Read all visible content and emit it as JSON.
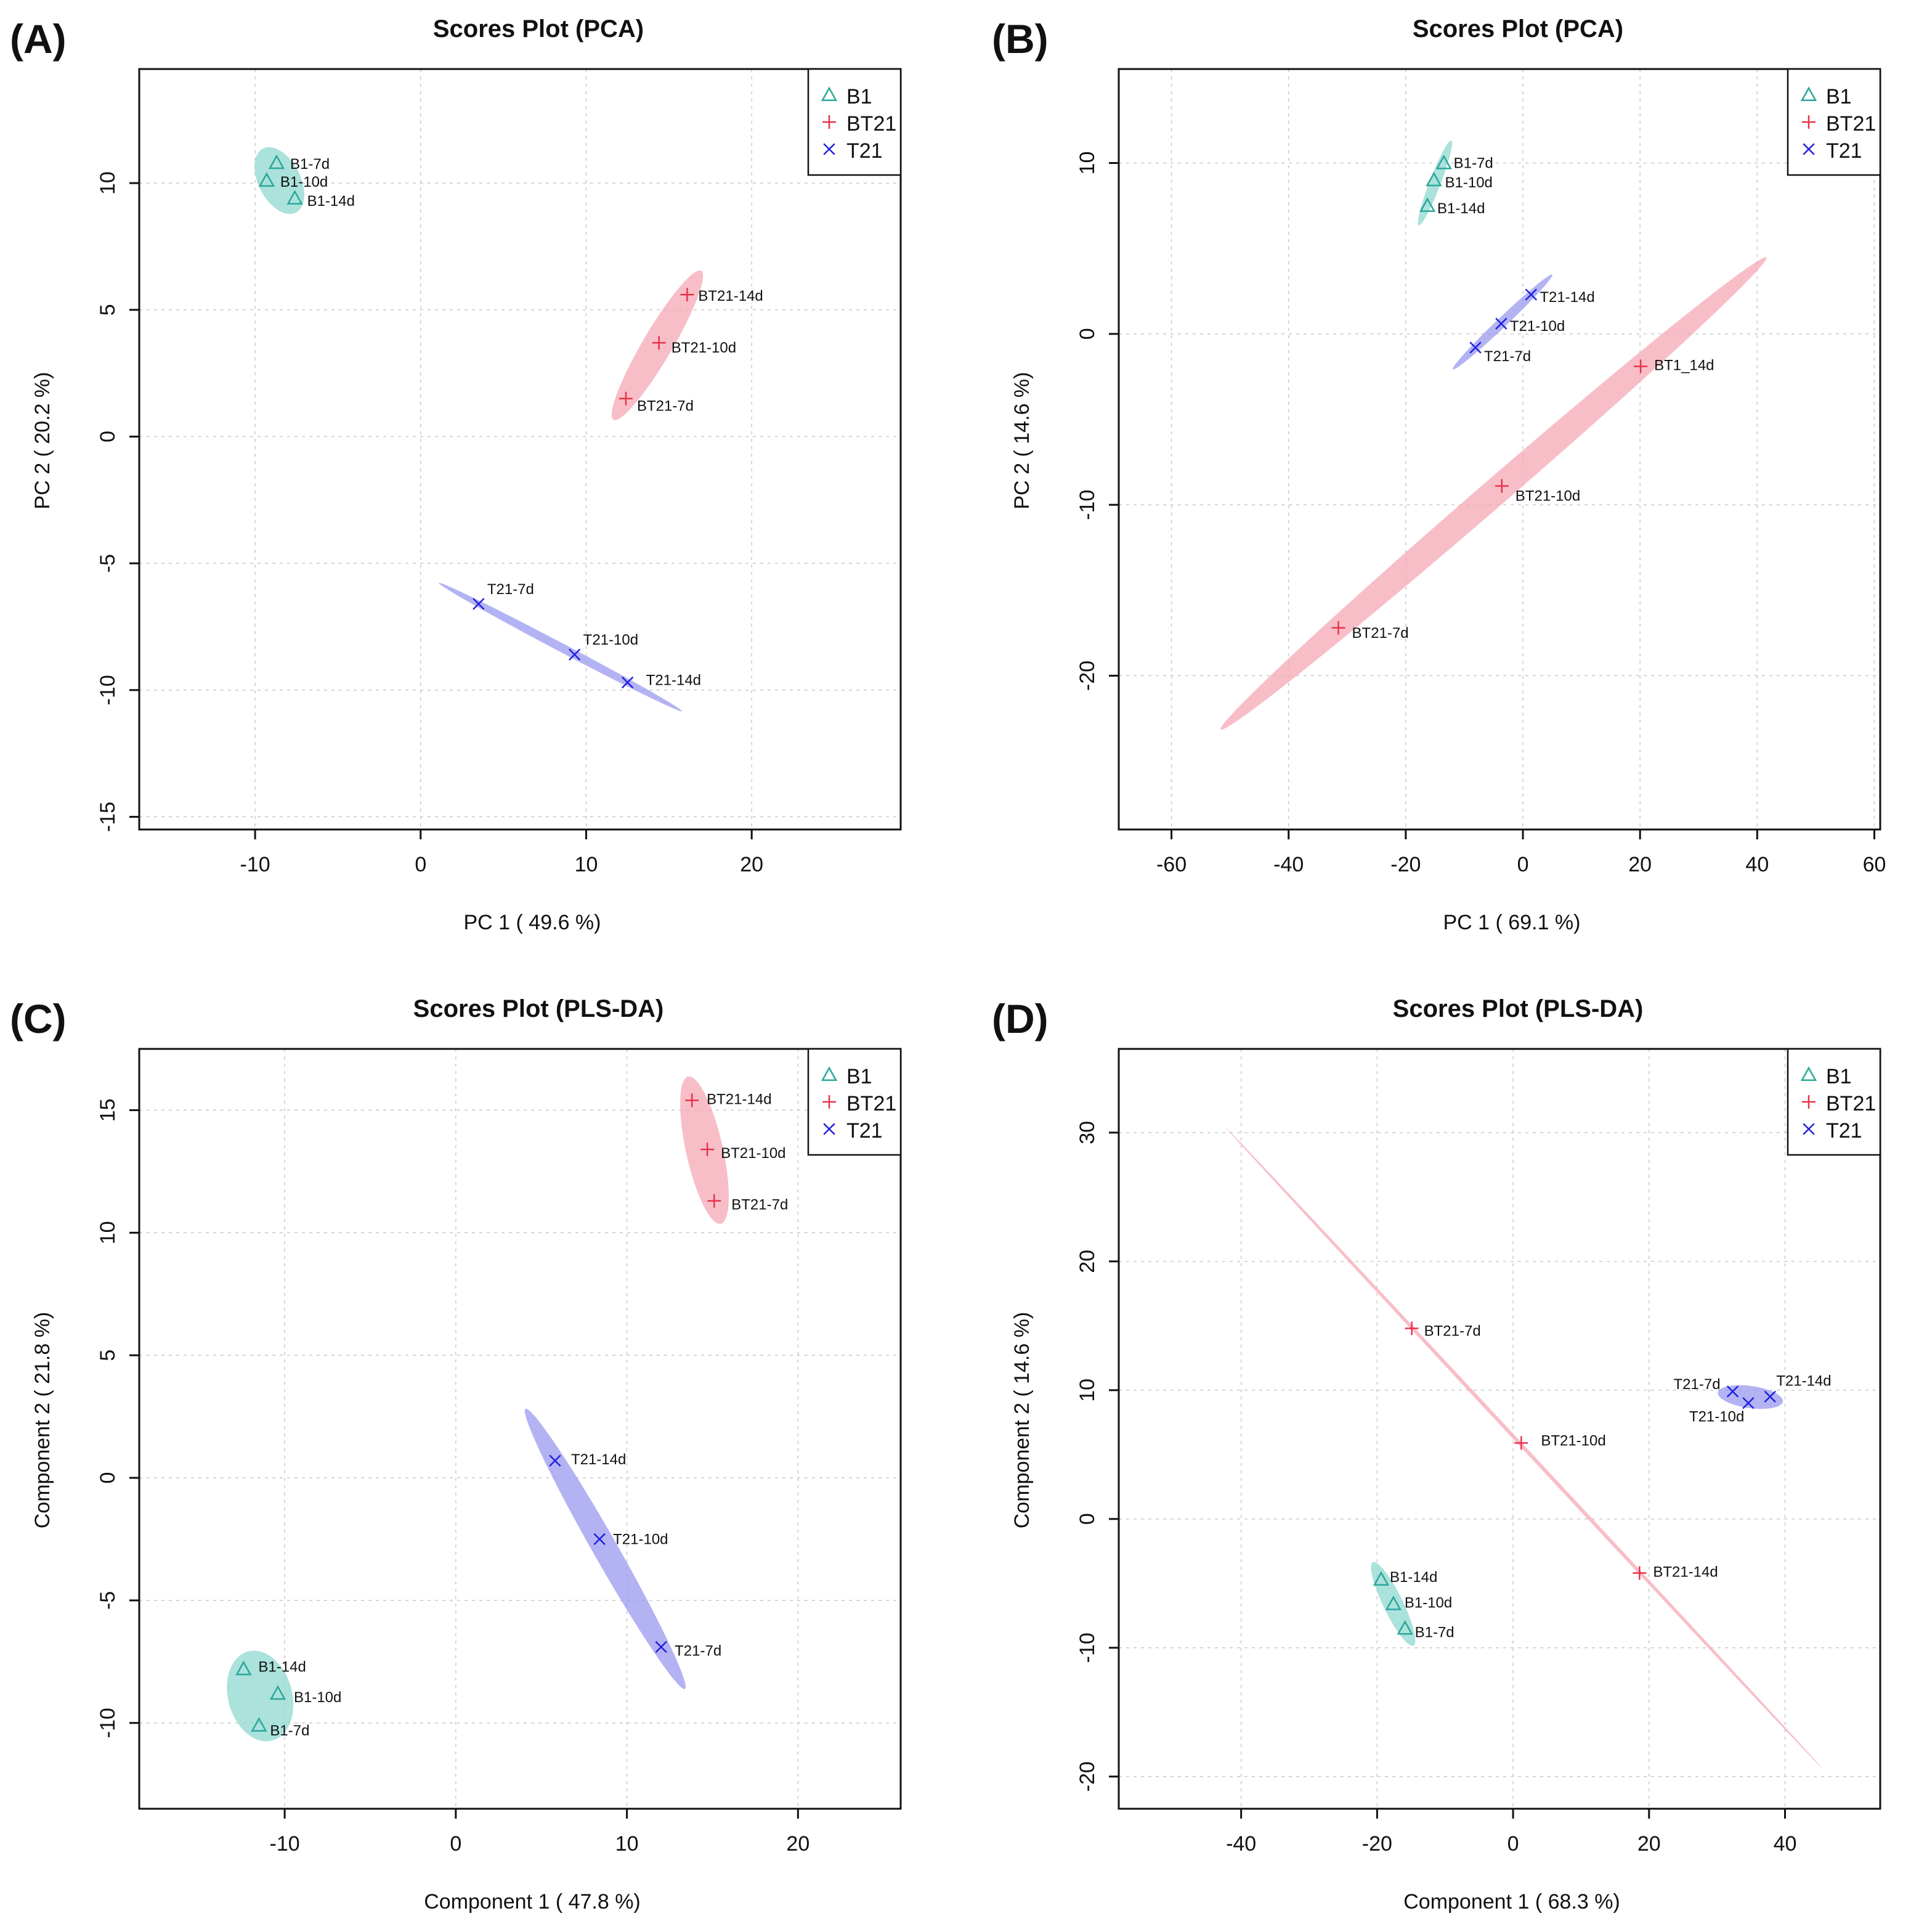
{
  "colors": {
    "B1": "#2aa79b",
    "BT21": "#e8334a",
    "T21": "#2222dd",
    "B1_fill": "#8fd8cf",
    "BT21_fill": "#f5a8b4",
    "T21_fill": "#9a9af0"
  },
  "chart_data": [
    {
      "type": "scatter",
      "panel": "(A)",
      "title": "Scores Plot (PCA)",
      "xlabel": "PC 1 ( 49.6 %)",
      "ylabel": "PC 2 ( 20.2 %)",
      "xlim": [
        -17,
        29
      ],
      "ylim": [
        -15.5,
        14.5
      ],
      "xticks": [
        -10,
        0,
        10,
        20
      ],
      "yticks": [
        -15,
        -10,
        -5,
        0,
        5,
        10
      ],
      "legend": [
        "B1",
        "BT21",
        "T21"
      ],
      "legend_position": "top-right",
      "grid": true,
      "series": [
        {
          "name": "B1",
          "marker": "triangle",
          "points": [
            {
              "label": "B1-7d",
              "x": -8.7,
              "y": 10.8
            },
            {
              "label": "B1-10d",
              "x": -9.3,
              "y": 10.1
            },
            {
              "label": "B1-14d",
              "x": -7.6,
              "y": 9.4
            }
          ]
        },
        {
          "name": "BT21",
          "marker": "plus",
          "points": [
            {
              "label": "BT21-14d",
              "x": 16.1,
              "y": 5.6
            },
            {
              "label": "BT21-10d",
              "x": 14.4,
              "y": 3.7
            },
            {
              "label": "BT21-7d",
              "x": 12.4,
              "y": 1.5
            }
          ]
        },
        {
          "name": "T21",
          "marker": "x",
          "points": [
            {
              "label": "T21-7d",
              "x": 3.5,
              "y": -6.6
            },
            {
              "label": "T21-10d",
              "x": 9.3,
              "y": -8.6
            },
            {
              "label": "T21-14d",
              "x": 12.5,
              "y": -9.7
            }
          ]
        }
      ]
    },
    {
      "type": "scatter",
      "panel": "(B)",
      "title": "Scores Plot (PCA)",
      "xlabel": "PC 1 ( 69.1 %)",
      "ylabel": "PC 2 ( 14.6 %)",
      "xlim": [
        -69,
        61
      ],
      "ylim": [
        -29,
        15.5
      ],
      "xticks": [
        -60,
        -40,
        -20,
        0,
        20,
        40,
        60
      ],
      "yticks": [
        -20,
        -10,
        0,
        10
      ],
      "legend": [
        "B1",
        "BT21",
        "T21"
      ],
      "legend_position": "top-right",
      "grid": true,
      "series": [
        {
          "name": "B1",
          "marker": "triangle",
          "points": [
            {
              "label": "B1-7d",
              "x": -13.5,
              "y": 10.0
            },
            {
              "label": "B1-10d",
              "x": -15.2,
              "y": 9.0
            },
            {
              "label": "B1-14d",
              "x": -16.3,
              "y": 7.5
            }
          ]
        },
        {
          "name": "BT21",
          "marker": "plus",
          "points": [
            {
              "label": "BT1_14d",
              "x": 20.1,
              "y": -1.9
            },
            {
              "label": "BT21-10d",
              "x": -3.6,
              "y": -8.9
            },
            {
              "label": "BT21-7d",
              "x": -31.5,
              "y": -17.2
            }
          ]
        },
        {
          "name": "T21",
          "marker": "x",
          "points": [
            {
              "label": "T21-14d",
              "x": 1.4,
              "y": 2.3
            },
            {
              "label": "T21-10d",
              "x": -3.7,
              "y": 0.6
            },
            {
              "label": "T21-7d",
              "x": -8.1,
              "y": -0.8
            }
          ]
        }
      ]
    },
    {
      "type": "scatter",
      "panel": "(C)",
      "title": "Scores Plot (PLS-DA)",
      "xlabel": "Component 1 ( 47.8 %)",
      "ylabel": "Component 2 ( 21.8 %)",
      "xlim": [
        -18.5,
        26
      ],
      "ylim": [
        -13.5,
        17.5
      ],
      "xticks": [
        -10,
        0,
        10,
        20
      ],
      "yticks": [
        -10,
        -5,
        0,
        5,
        10,
        15
      ],
      "legend": [
        "B1",
        "BT21",
        "T21"
      ],
      "legend_position": "top-right",
      "grid": true,
      "series": [
        {
          "name": "B1",
          "marker": "triangle",
          "points": [
            {
              "label": "B1-14d",
              "x": -12.4,
              "y": -7.8
            },
            {
              "label": "B1-10d",
              "x": -10.4,
              "y": -8.8
            },
            {
              "label": "B1-7d",
              "x": -11.5,
              "y": -10.1
            }
          ]
        },
        {
          "name": "BT21",
          "marker": "plus",
          "points": [
            {
              "label": "BT21-14d",
              "x": 13.8,
              "y": 15.4
            },
            {
              "label": "BT21-10d",
              "x": 14.7,
              "y": 13.4
            },
            {
              "label": "BT21-7d",
              "x": 15.1,
              "y": 11.3
            }
          ]
        },
        {
          "name": "T21",
          "marker": "x",
          "points": [
            {
              "label": "T21-14d",
              "x": 5.8,
              "y": 0.7
            },
            {
              "label": "T21-10d",
              "x": 8.4,
              "y": -2.5
            },
            {
              "label": "T21-7d",
              "x": 12.0,
              "y": -6.9
            }
          ]
        }
      ]
    },
    {
      "type": "scatter",
      "panel": "(D)",
      "title": "Scores Plot (PLS-DA)",
      "xlabel": "Component 1 ( 68.3 %)",
      "ylabel": "Component 2 ( 14.6 %)",
      "xlim": [
        -58,
        54
      ],
      "ylim": [
        -22.5,
        36.5
      ],
      "xticks": [
        -40,
        -20,
        0,
        20,
        40
      ],
      "yticks": [
        -20,
        -10,
        0,
        10,
        20,
        30
      ],
      "legend": [
        "B1",
        "BT21",
        "T21"
      ],
      "legend_position": "top-right",
      "grid": true,
      "series": [
        {
          "name": "B1",
          "marker": "triangle",
          "points": [
            {
              "label": "B1-14d",
              "x": -19.4,
              "y": -4.7
            },
            {
              "label": "B1-10d",
              "x": -17.6,
              "y": -6.6
            },
            {
              "label": "B1-7d",
              "x": -15.9,
              "y": -8.5
            }
          ]
        },
        {
          "name": "BT21",
          "marker": "plus",
          "points": [
            {
              "label": "BT21-7d",
              "x": -14.9,
              "y": 14.8
            },
            {
              "label": "BT21-10d",
              "x": 1.2,
              "y": 5.9
            },
            {
              "label": "BT21-14d",
              "x": 18.6,
              "y": -4.2
            }
          ]
        },
        {
          "name": "T21",
          "marker": "x",
          "points": [
            {
              "label": "T21-7d",
              "x": 32.3,
              "y": 9.9
            },
            {
              "label": "T21-10d",
              "x": 34.6,
              "y": 9.0
            },
            {
              "label": "T21-14d",
              "x": 37.8,
              "y": 9.5
            }
          ]
        }
      ]
    }
  ]
}
